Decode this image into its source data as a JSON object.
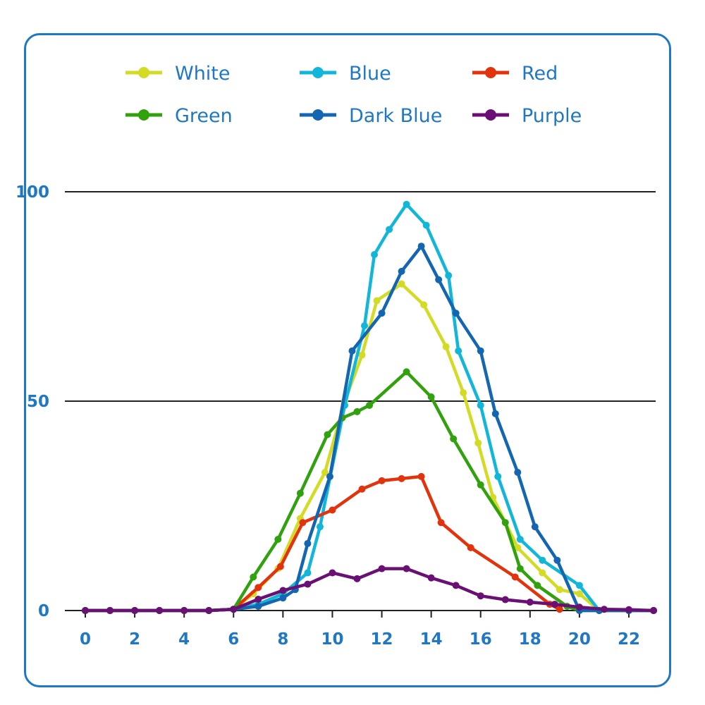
{
  "chart_data": {
    "type": "line",
    "title": "",
    "xlabel": "",
    "ylabel": "",
    "xlim": [
      -0.8,
      23
    ],
    "ylim": [
      0,
      100
    ],
    "x_ticks": [
      0,
      2,
      4,
      6,
      8,
      10,
      12,
      14,
      16,
      18,
      20,
      22
    ],
    "y_ticks": [
      0,
      50,
      100
    ],
    "grid": "horizontal lines at 0, 50, 100",
    "legend_position": "top",
    "series": [
      {
        "name": "White",
        "color": "#d4db24",
        "x": [
          0,
          1,
          2,
          3,
          4,
          5,
          6,
          6.8,
          7.8,
          8.7,
          9.7,
          10.5,
          11.2,
          11.8,
          12.8,
          13.7,
          14.6,
          15.3,
          15.9,
          16.5,
          17.5,
          18.5,
          19.2,
          20,
          20.8,
          22,
          23
        ],
        "y": [
          0,
          0,
          0,
          0,
          0,
          0,
          0.3,
          4,
          10,
          22,
          33,
          50,
          61,
          74,
          78,
          73,
          63,
          52,
          40,
          27,
          15,
          9,
          5,
          4,
          0,
          0,
          0
        ]
      },
      {
        "name": "Blue",
        "color": "#12b6d8",
        "x": [
          0,
          1,
          2,
          3,
          4,
          5,
          6,
          7,
          8,
          9,
          9.5,
          10.5,
          11.3,
          11.7,
          12.3,
          13,
          13.8,
          14.7,
          15.1,
          16,
          16.7,
          17.6,
          18.5,
          20,
          20.8,
          22,
          23
        ],
        "y": [
          0,
          0,
          0,
          0,
          0,
          0,
          0.3,
          1.5,
          4,
          9,
          20,
          49,
          68,
          85,
          91,
          97,
          92,
          80,
          62,
          49,
          32,
          17,
          12,
          6,
          0,
          0,
          0
        ]
      },
      {
        "name": "Red",
        "color": "#e2330c",
        "x": [
          0,
          1,
          2,
          3,
          4,
          5,
          6,
          7,
          7.9,
          8.8,
          10,
          11.2,
          12,
          12.8,
          13.6,
          14.4,
          15.6,
          17.4,
          18.8,
          19.2
        ],
        "y": [
          0,
          0,
          0,
          0,
          0,
          0,
          0.3,
          5.5,
          10.5,
          21,
          24,
          29,
          31,
          31.5,
          32,
          21,
          15,
          8,
          1.5,
          0.3
        ]
      },
      {
        "name": "Green",
        "color": "#31a10e",
        "x": [
          0,
          1,
          2,
          3,
          4,
          5,
          6,
          6.8,
          7.8,
          8.7,
          9.8,
          10.4,
          11,
          11.5,
          13,
          14,
          14.9,
          16,
          17,
          17.6,
          18.3,
          19.5,
          20,
          20.8,
          22,
          23
        ],
        "y": [
          0,
          0,
          0,
          0,
          0,
          0,
          0.3,
          8,
          17,
          28,
          42,
          46,
          47.5,
          49,
          57,
          51,
          41,
          30,
          21,
          10,
          6,
          1,
          0,
          0,
          0,
          0
        ]
      },
      {
        "name": "Dark Blue",
        "color": "#1466b0",
        "x": [
          0,
          1,
          2,
          3,
          4,
          5,
          6,
          7,
          8,
          8.5,
          9,
          9.9,
          10.8,
          12,
          12.8,
          13.6,
          14.3,
          15,
          16,
          16.6,
          17.5,
          18.2,
          19.1,
          20,
          20.8,
          22,
          23
        ],
        "y": [
          0,
          0,
          0,
          0,
          0,
          0,
          0.3,
          1,
          3,
          5,
          16,
          32,
          62,
          71,
          81,
          87,
          79,
          71,
          62,
          47,
          33,
          20,
          12,
          0,
          0,
          0,
          0
        ]
      },
      {
        "name": "Purple",
        "color": "#6a0f74",
        "x": [
          0,
          1,
          2,
          3,
          4,
          5,
          6,
          7,
          8,
          9,
          10,
          11,
          12,
          13,
          14,
          15,
          16,
          17,
          18,
          19,
          20,
          21,
          22,
          23
        ],
        "y": [
          0,
          0,
          0,
          0,
          0,
          0,
          0.3,
          2.7,
          4.8,
          6.3,
          9,
          7.6,
          10,
          10,
          7.8,
          6,
          3.5,
          2.6,
          2,
          1.5,
          0.8,
          0.3,
          0.2,
          0
        ]
      }
    ]
  }
}
